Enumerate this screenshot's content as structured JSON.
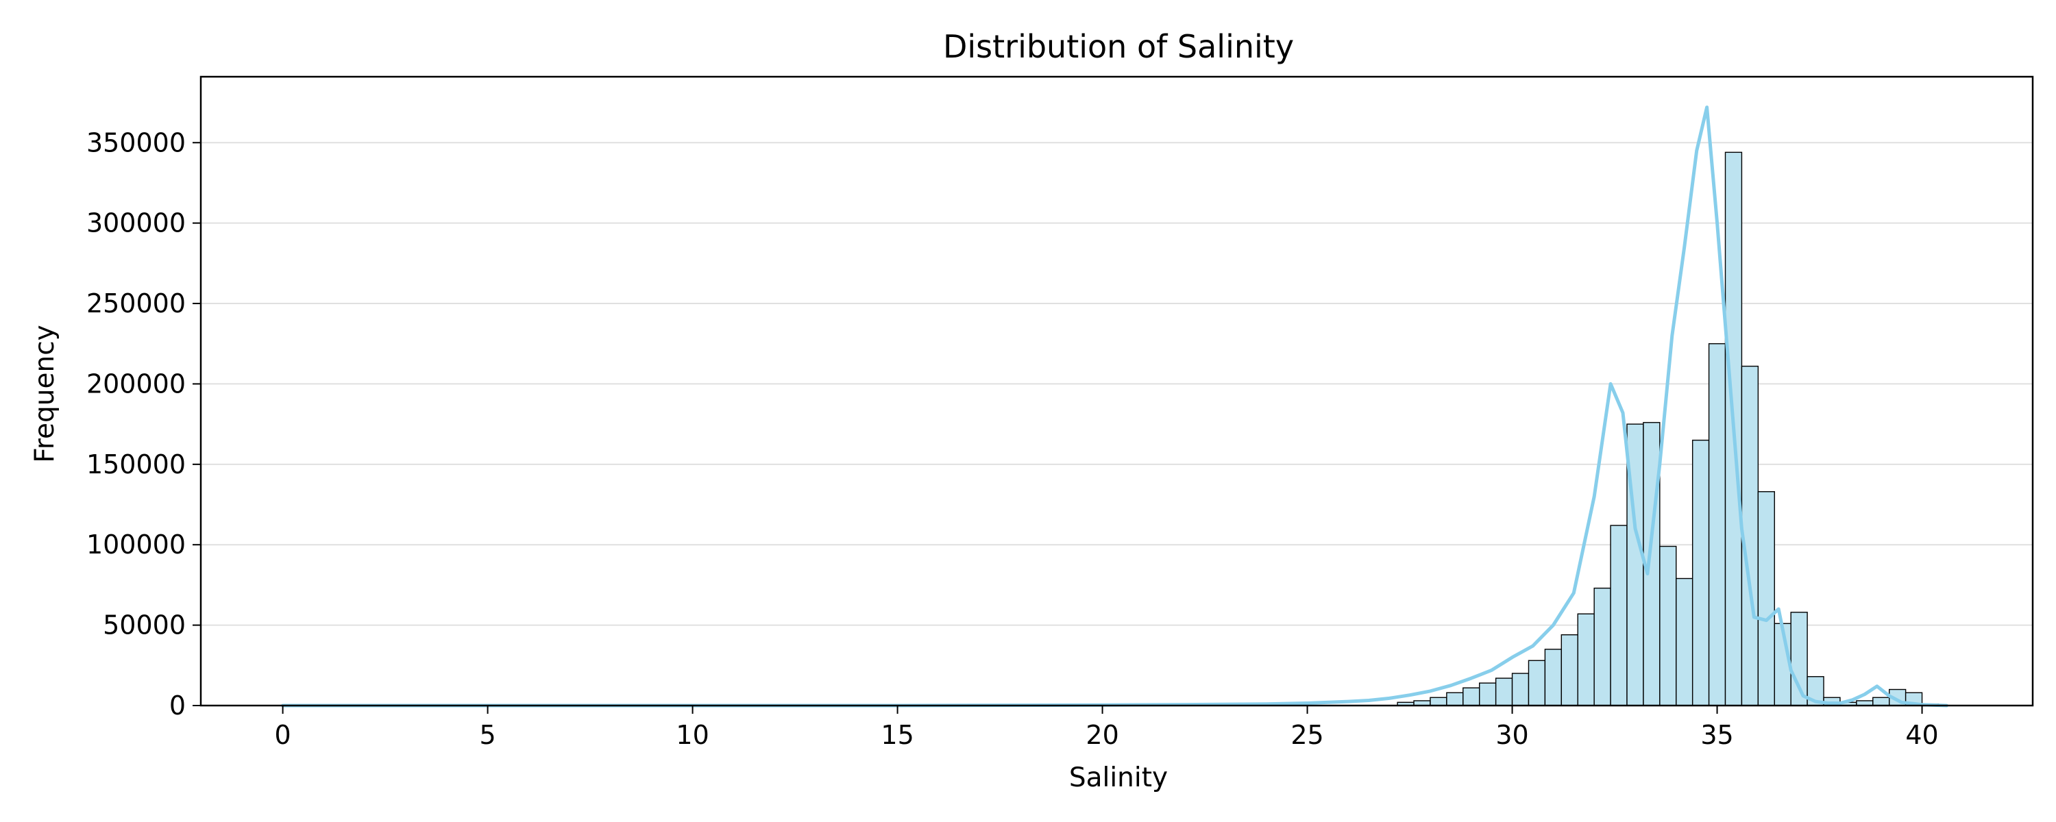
{
  "chart_data": {
    "type": "bar",
    "title": "Distribution of Salinity",
    "xlabel": "Salinity",
    "ylabel": "Frequency",
    "xlim": [
      -2.0,
      42.7
    ],
    "ylim": [
      0,
      391000
    ],
    "x_ticks": [
      0,
      5,
      10,
      15,
      20,
      25,
      30,
      35,
      40
    ],
    "y_ticks": [
      0,
      50000,
      100000,
      150000,
      200000,
      250000,
      300000,
      350000
    ],
    "grid": "horizontal",
    "bins": {
      "start": 0,
      "width": 0.4,
      "count": 102,
      "values": [
        0,
        0,
        0,
        0,
        0,
        0,
        0,
        0,
        0,
        0,
        0,
        0,
        0,
        0,
        0,
        0,
        0,
        0,
        0,
        0,
        0,
        0,
        0,
        0,
        0,
        0,
        0,
        0,
        0,
        0,
        0,
        0,
        0,
        0,
        0,
        0,
        0,
        0,
        0,
        0,
        0,
        0,
        0,
        0,
        0,
        0,
        0,
        0,
        0,
        0,
        0,
        0,
        0,
        0,
        0,
        0,
        0,
        0,
        0,
        0,
        0,
        0,
        0,
        0,
        0,
        0,
        0,
        0,
        2000,
        3000,
        5000,
        8000,
        11000,
        14000,
        17000,
        20000,
        28000,
        35000,
        44000,
        57000,
        73000,
        112000,
        175000,
        176000,
        99000,
        79000,
        165000,
        225000,
        344000,
        211000,
        133000,
        51000,
        58000,
        18000,
        5000,
        2000,
        3000,
        5000,
        10000,
        8000,
        1000,
        0
      ]
    },
    "kde": {
      "x": [
        0,
        5,
        10,
        15,
        20,
        22,
        24,
        25,
        26,
        26.5,
        27,
        27.5,
        28,
        28.5,
        29,
        29.5,
        30,
        30.5,
        31,
        31.5,
        32,
        32.4,
        32.7,
        33.0,
        33.3,
        33.6,
        33.9,
        34.2,
        34.5,
        34.75,
        35.0,
        35.3,
        35.6,
        35.9,
        36.2,
        36.5,
        36.8,
        37.1,
        37.4,
        37.7,
        38.0,
        38.3,
        38.6,
        38.9,
        39.2,
        39.5,
        40.0,
        40.6
      ],
      "y": [
        0,
        0,
        0,
        0,
        300,
        600,
        1000,
        1500,
        2500,
        3200,
        4500,
        6500,
        9000,
        12500,
        17000,
        22000,
        30000,
        37000,
        50000,
        70000,
        130000,
        200000,
        182000,
        110000,
        82000,
        150000,
        230000,
        285000,
        345000,
        372000,
        300000,
        205000,
        110000,
        55000,
        53000,
        60000,
        22000,
        6000,
        2500,
        1500,
        1500,
        3500,
        7000,
        12000,
        6000,
        2000,
        500,
        0
      ]
    },
    "colors": {
      "bar_fill": "#bde3f0",
      "bar_edge": "#000000",
      "kde_line": "#87ceeb",
      "grid": "#e0e0e0",
      "axis": "#000000"
    }
  }
}
